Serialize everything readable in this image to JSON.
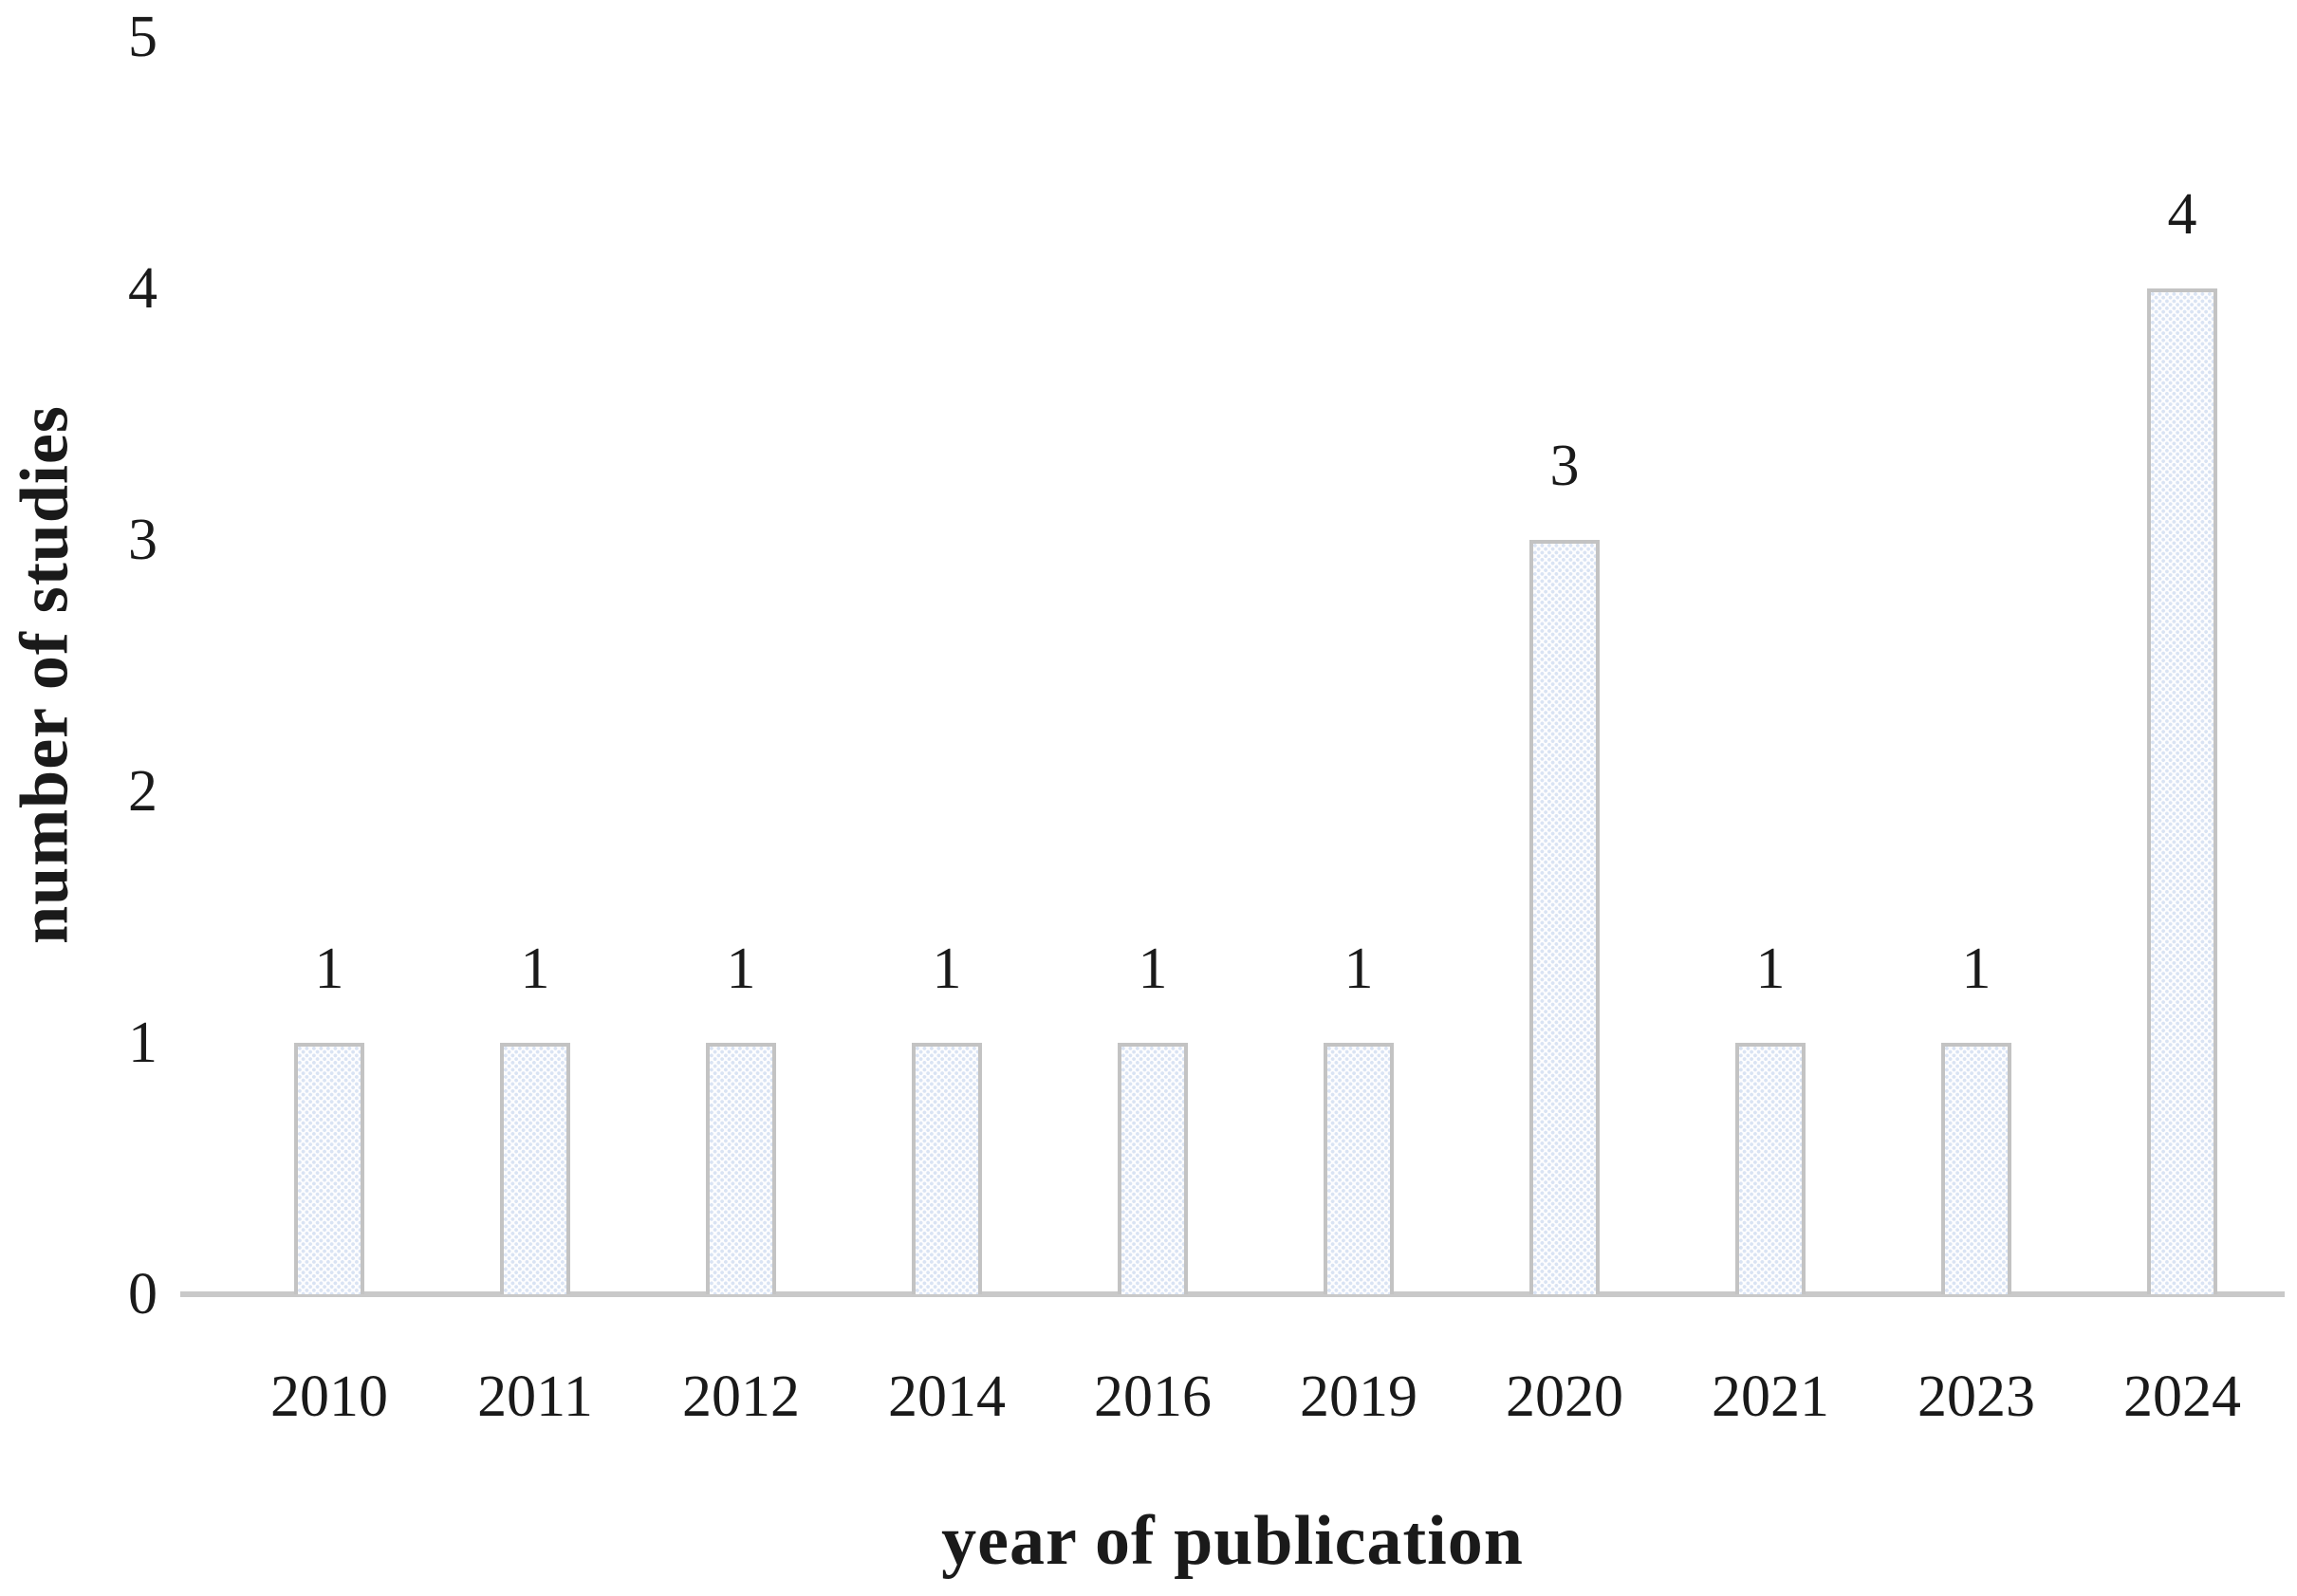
{
  "chart_data": {
    "type": "bar",
    "categories": [
      "2010",
      "2011",
      "2012",
      "2014",
      "2016",
      "2019",
      "2020",
      "2021",
      "2023",
      "2024"
    ],
    "values": [
      1,
      1,
      1,
      1,
      1,
      1,
      3,
      1,
      1,
      4
    ],
    "title": "",
    "xlabel": "year of publication",
    "ylabel": "number of studies",
    "ylim": [
      0,
      5
    ],
    "yticks": [
      0,
      1,
      2,
      3,
      4,
      5
    ],
    "grid": false,
    "legend": false,
    "data_labels_shown": true,
    "bar_fill_style": "light-blue dotted checkerboard pattern",
    "colors": {
      "bar_fill_base": "#fdfdfe",
      "bar_fill_dot": "#d9e3f3",
      "bar_border": "#c3c3c3",
      "axis_line": "#c9c9c9",
      "text": "#1a1a1a"
    }
  }
}
